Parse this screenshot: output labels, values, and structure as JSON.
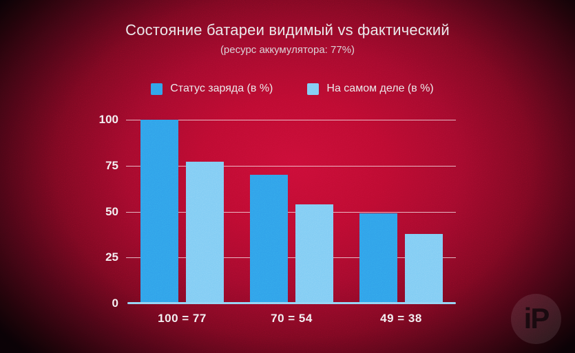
{
  "watermark": {
    "text": "iP"
  },
  "colors": {
    "visible_bar": "#2f9fe9",
    "actual_bar": "#7ecbf4",
    "axis_line": "#90d2f5",
    "background_center": "#c90d36"
  },
  "chart_data": {
    "type": "bar",
    "title": "Состояние батареи видимый vs фактический",
    "subtitle": "(ресурс аккумулятора: 77%)",
    "categories": [
      "100 = 77",
      "70 = 54",
      "49 = 38"
    ],
    "series": [
      {
        "name": "Статус заряда (в %)",
        "color": "#2f9fe9",
        "values": [
          100,
          70,
          49
        ]
      },
      {
        "name": "На самом деле (в %)",
        "color": "#7ecbf4",
        "values": [
          77,
          54,
          38
        ]
      }
    ],
    "xlabel": "",
    "ylabel": "",
    "ylim": [
      0,
      100
    ],
    "yticks": [
      0,
      25,
      50,
      75,
      100
    ],
    "grid": true,
    "legend_position": "top"
  }
}
